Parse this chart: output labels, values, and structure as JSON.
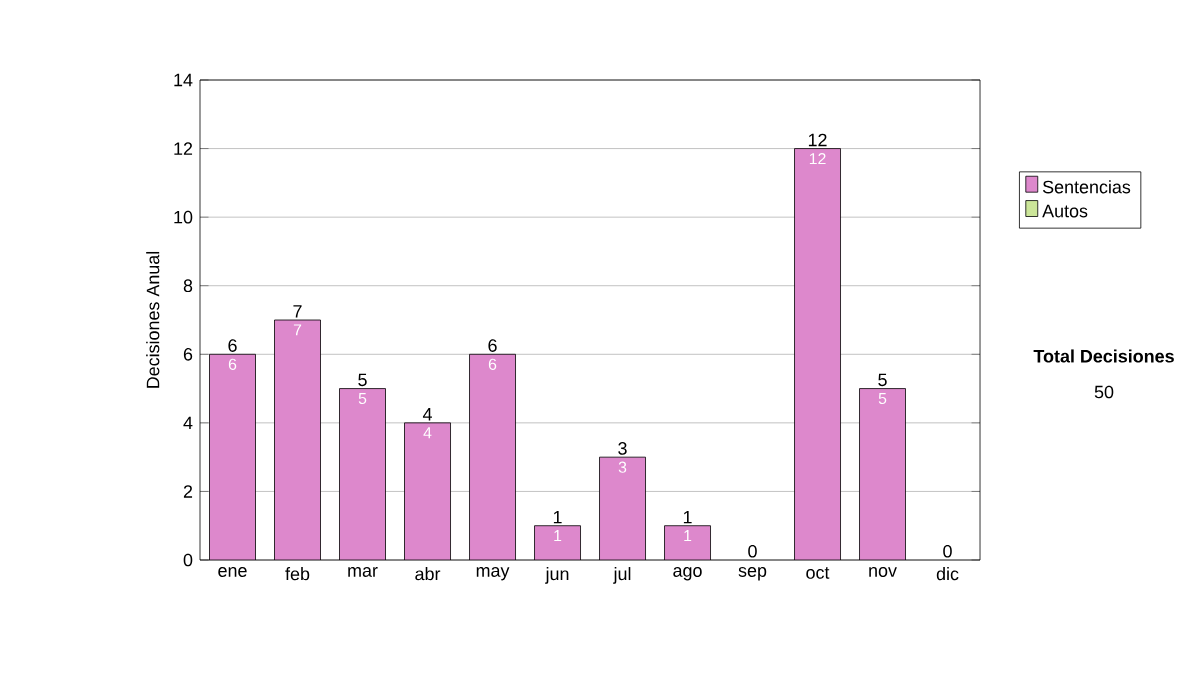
{
  "chart_data": {
    "type": "bar",
    "ylabel": "Decisiones Anual",
    "categories": [
      "ene",
      "feb",
      "mar",
      "abr",
      "may",
      "jun",
      "jul",
      "ago",
      "sep",
      "oct",
      "nov",
      "dic"
    ],
    "stacked": true,
    "series": [
      {
        "name": "Sentencias",
        "color": "#dd88cc",
        "values": [
          6,
          7,
          5,
          4,
          6,
          1,
          3,
          1,
          0,
          12,
          5,
          0
        ],
        "value_labels": [
          "6",
          "7",
          "5",
          "4",
          "6",
          "1",
          "3",
          "1",
          null,
          "12",
          "5",
          null
        ]
      },
      {
        "name": "Autos",
        "color": "#cce699",
        "values": [
          0,
          0,
          0,
          0,
          0,
          0,
          0,
          0,
          0,
          0,
          0,
          0
        ]
      }
    ],
    "totals": [
      "6",
      "7",
      "5",
      "4",
      "6",
      "1",
      "3",
      "1",
      "0",
      "12",
      "5",
      "0"
    ],
    "ylim": [
      0,
      14
    ],
    "yticks": [
      0,
      2,
      4,
      6,
      8,
      10,
      12,
      14
    ],
    "grid": "y",
    "legend": "right",
    "annotations": [
      "Total Decisiones",
      "50"
    ]
  }
}
